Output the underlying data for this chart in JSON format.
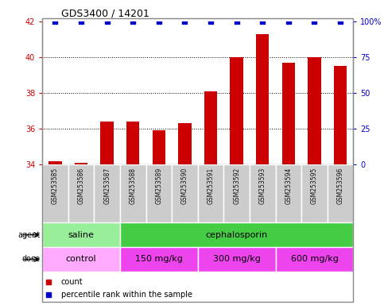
{
  "title": "GDS3400 / 14201",
  "samples": [
    "GSM253585",
    "GSM253586",
    "GSM253587",
    "GSM253588",
    "GSM253589",
    "GSM253590",
    "GSM253591",
    "GSM253592",
    "GSM253593",
    "GSM253594",
    "GSM253595",
    "GSM253596"
  ],
  "count_values": [
    34.2,
    34.1,
    36.4,
    36.4,
    35.9,
    36.3,
    38.1,
    40.0,
    41.3,
    39.7,
    40.0,
    39.5
  ],
  "percentile_right_values": [
    100,
    100,
    100,
    100,
    100,
    100,
    100,
    100,
    100,
    100,
    100,
    100
  ],
  "ylim_left": [
    34,
    42
  ],
  "ylim_right": [
    0,
    100
  ],
  "yticks_left": [
    34,
    36,
    38,
    40,
    42
  ],
  "yticks_right": [
    0,
    25,
    50,
    75,
    100
  ],
  "ytick_labels_right": [
    "0",
    "25",
    "50",
    "75",
    "100%"
  ],
  "bar_color": "#cc0000",
  "dot_color": "#0000cc",
  "bar_width": 0.5,
  "agent_groups": [
    {
      "label": "saline",
      "start": 0,
      "end": 3,
      "color": "#99ee99"
    },
    {
      "label": "cephalosporin",
      "start": 3,
      "end": 12,
      "color": "#44cc44"
    }
  ],
  "dose_groups": [
    {
      "label": "control",
      "start": 0,
      "end": 3,
      "color": "#ffaaff"
    },
    {
      "label": "150 mg/kg",
      "start": 3,
      "end": 6,
      "color": "#ee44ee"
    },
    {
      "label": "300 mg/kg",
      "start": 6,
      "end": 9,
      "color": "#ee44ee"
    },
    {
      "label": "600 mg/kg",
      "start": 9,
      "end": 12,
      "color": "#ee44ee"
    }
  ],
  "legend_items": [
    {
      "label": "count",
      "color": "#cc0000"
    },
    {
      "label": "percentile rank within the sample",
      "color": "#0000cc"
    }
  ],
  "left_axis_color": "#cc0000",
  "right_axis_color": "#0000cc",
  "tick_bg_color": "#cccccc"
}
